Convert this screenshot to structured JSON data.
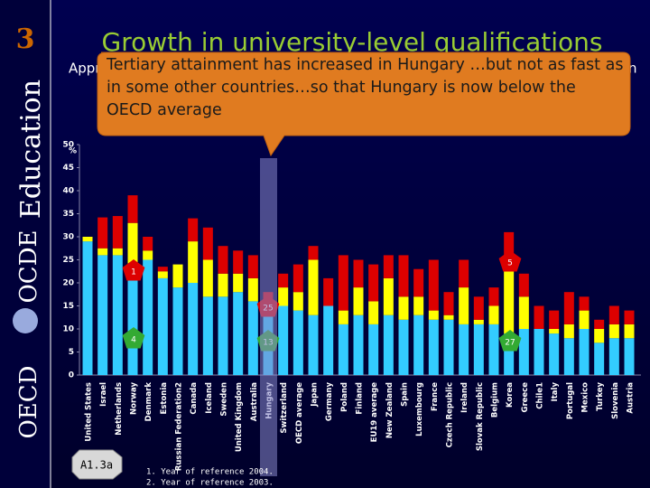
{
  "slide": {
    "number": "3",
    "title": "Growth in university-level qualifications",
    "subtitle_left": "Appr",
    "subtitle_right": "n"
  },
  "callout": "Tertiary attainment has increased in Hungary …but not as fast as in some other countries…so that Hungary is now below the OECD average",
  "sidebar": {
    "education": "Education",
    "ocde": "OCDE",
    "oecd": "OECD"
  },
  "footer": {
    "badge": "A1.3a",
    "notes": [
      "1. Year of reference 2004.",
      "2. Year of reference 2003."
    ]
  },
  "chart_data": {
    "type": "bar",
    "stacked": true,
    "ylabel": "%",
    "categories": [
      "United States",
      "Israel",
      "Netherlands",
      "Norway",
      "Denmark",
      "Estonia",
      "Russian Federation2",
      "Canada",
      "Iceland",
      "Sweden",
      "United Kingdom",
      "Australia",
      "Hungary",
      "Switzerland",
      "OECD average",
      "Japan",
      "Germany",
      "Poland",
      "Finland",
      "EU19 average",
      "New Zealand",
      "Spain",
      "Luxembourg",
      "France",
      "Czech Republic",
      "Ireland",
      "Slovak Republic",
      "Belgium",
      "Korea",
      "Greece",
      "Chile1",
      "Italy",
      "Portugal",
      "Mexico",
      "Turkey",
      "Slovenia",
      "Austria"
    ],
    "series": [
      {
        "color": "#33ccff",
        "values": [
          29,
          26,
          26,
          23,
          25,
          21,
          19,
          20,
          17,
          17,
          18,
          16,
          13,
          15,
          14,
          13,
          15,
          11,
          13,
          11,
          13,
          12,
          13,
          12,
          12,
          11,
          11,
          11,
          9,
          10,
          10,
          9,
          8,
          10,
          7,
          8,
          8
        ]
      },
      {
        "color": "#ffff00",
        "values": [
          1,
          1.5,
          1.5,
          10,
          2,
          1.5,
          5,
          9,
          8,
          5,
          4,
          5,
          3,
          4,
          4,
          12,
          0,
          3,
          6,
          5,
          8,
          5,
          4,
          2,
          1,
          8,
          1,
          4,
          17,
          7,
          0,
          1,
          3,
          4,
          3,
          3,
          3
        ]
      },
      {
        "color": "#dd0000",
        "values": [
          0,
          6.7,
          7,
          6,
          3,
          1,
          0,
          5,
          7,
          6,
          5,
          5,
          2,
          3,
          6,
          3,
          6,
          12,
          6,
          8,
          5,
          9,
          6,
          11,
          5,
          6,
          5,
          4,
          5,
          5,
          5,
          4,
          7,
          3,
          2,
          4,
          3
        ]
      }
    ],
    "ylim": [
      0,
      50
    ],
    "yticks": [
      0,
      5,
      10,
      15,
      20,
      25,
      30,
      35,
      40,
      45,
      50
    ],
    "annotations": [
      {
        "text": "1",
        "color": "#dd0000"
      },
      {
        "text": "25",
        "color": "#dd0000"
      },
      {
        "text": "5",
        "color": "#dd0000"
      },
      {
        "text": "4",
        "color": "#33aa33"
      },
      {
        "text": "13",
        "color": "#33aa33"
      },
      {
        "text": "27",
        "color": "#33aa33"
      }
    ]
  }
}
